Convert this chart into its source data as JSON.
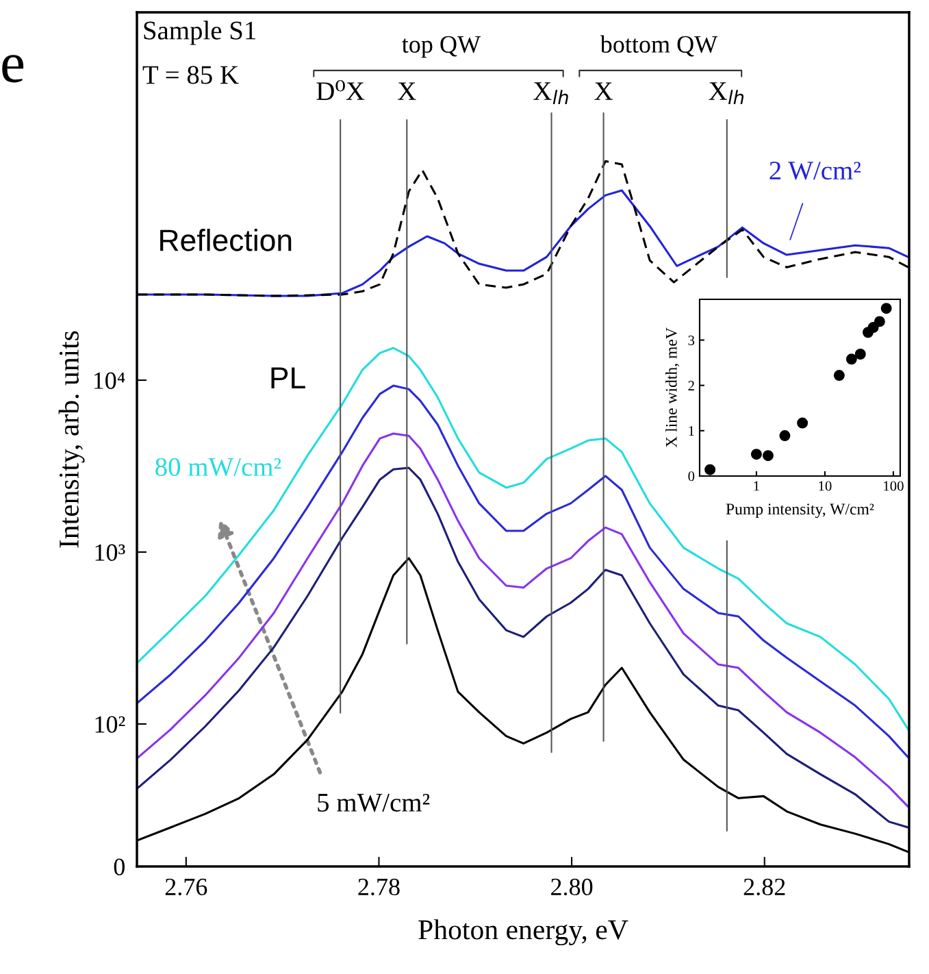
{
  "chart_data": [
    {
      "type": "line",
      "xlabel": "Photon energy, eV",
      "ylabel": "Intensity, arb. units",
      "log": "y",
      "xlim": [
        2.7549,
        2.835
      ],
      "xticks": [
        2.76,
        2.78,
        {
          "value": 2.8,
          "label": "2.80"
        },
        2.82
      ],
      "ylim": [
        0,
        1380000
      ],
      "yticks": [
        0,
        {
          "value": 100,
          "label": "10²"
        },
        {
          "value": 1000,
          "label": "10³"
        },
        {
          "value": 10000,
          "label": "10⁴"
        }
      ],
      "grid": false,
      "legend": false,
      "marker": "none",
      "x": [
        2.7549,
        2.7584,
        2.762,
        2.7655,
        2.7691,
        2.7726,
        2.7762,
        2.7783,
        2.7801,
        2.7815,
        2.7831,
        2.7843,
        2.7861,
        2.7882,
        2.7904,
        2.7932,
        2.795,
        2.7974,
        2.7999,
        2.8017,
        2.8035,
        2.8052,
        2.8081,
        2.8116,
        2.8152,
        2.8173,
        2.8199,
        2.8223,
        2.8258,
        2.8294,
        2.8329,
        2.8349
      ],
      "series": [
        {
          "name": "80 mW/cm²",
          "color": "#22dddd",
          "values": [
            226,
            351,
            556,
            964,
            1750,
            3650,
            7260,
            11500,
            14400,
            15400,
            13800,
            11500,
            7950,
            4580,
            2900,
            2370,
            2530,
            3480,
            4000,
            4460,
            4580,
            3820,
            1920,
            1060,
            802,
            700,
            507,
            385,
            321,
            222,
            140,
            93
          ]
        },
        {
          "color": "#2a2ad8",
          "values": [
            132,
            194,
            306,
            507,
            921,
            1830,
            3820,
            6040,
            8320,
            9290,
            8870,
            7590,
            5510,
            3180,
            1920,
            1330,
            1330,
            1670,
            1920,
            2300,
            2770,
            2300,
            1060,
            610,
            442,
            422,
            306,
            243,
            177,
            128,
            85,
            64
          ]
        },
        {
          "color": "#8833ee",
          "values": [
            63,
            93,
            147,
            243,
            442,
            921,
            1920,
            3180,
            4580,
            4890,
            4750,
            4000,
            2640,
            1520,
            921,
            638,
            621,
            802,
            921,
            1160,
            1390,
            1270,
            668,
            336,
            222,
            212,
            154,
            117,
            89,
            64,
            43,
            33
          ]
        },
        {
          "color": "#1e1e78",
          "values": [
            42,
            62,
            97,
            157,
            279,
            556,
            1210,
            1830,
            2640,
            3030,
            3090,
            2640,
            1670,
            879,
            531,
            351,
            321,
            422,
            507,
            610,
            788,
            732,
            385,
            194,
            128,
            120,
            89,
            67,
            51,
            39,
            27,
            25
          ]
        },
        {
          "name": "5 mW/cm²",
          "color": "#000000",
          "values": [
            21,
            25,
            30,
            37,
            51,
            81,
            154,
            255,
            463,
            732,
            921,
            732,
            351,
            154,
            117,
            85,
            77,
            89,
            107,
            117,
            169,
            212,
            117,
            62,
            43,
            37,
            38,
            31,
            26,
            23,
            20,
            18
          ]
        },
        {
          "name": "2 W/cm²",
          "color": "#2222dd",
          "x": [
            2.7549,
            2.762,
            2.7691,
            2.7726,
            2.7762,
            2.7783,
            2.7801,
            2.7815,
            2.7831,
            2.785,
            2.7868,
            2.7882,
            2.7904,
            2.7932,
            2.795,
            2.7974,
            2.7999,
            2.8017,
            2.8035,
            2.8052,
            2.8081,
            2.8109,
            2.8152,
            2.8177,
            2.8199,
            2.8223,
            2.8258,
            2.8294,
            2.8329,
            2.8349
          ],
          "values": [
            31500,
            31500,
            30900,
            30900,
            32100,
            36100,
            43400,
            52100,
            59800,
            68700,
            62600,
            54600,
            47600,
            43400,
            43400,
            52100,
            78700,
            99100,
            119000,
            127000,
            78700,
            46200,
            59800,
            77300,
            62600,
            53600,
            57100,
            60900,
            58700,
            52100
          ]
        },
        {
          "color": "#000000",
          "line_style": "dashed",
          "x": [
            2.7549,
            2.762,
            2.7691,
            2.7762,
            2.7783,
            2.7801,
            2.7815,
            2.7831,
            2.7845,
            2.7861,
            2.7882,
            2.7904,
            2.7932,
            2.795,
            2.7974,
            2.7999,
            2.8017,
            2.8035,
            2.8052,
            2.8081,
            2.8106,
            2.8152,
            2.8177,
            2.8199,
            2.8223,
            2.8258,
            2.8294,
            2.8329,
            2.8349
          ],
          "values": [
            31500,
            31500,
            30900,
            31500,
            32900,
            36100,
            54600,
            125000,
            167000,
            114000,
            54600,
            36100,
            34500,
            36100,
            41500,
            78700,
            114000,
            188000,
            180000,
            49800,
            37100,
            59800,
            75200,
            52100,
            45400,
            50700,
            55600,
            52100,
            45400
          ]
        }
      ],
      "ref_lines": [
        {
          "axis": "x",
          "value": 2.776,
          "label": "D⁰X",
          "color": "#555555"
        },
        {
          "axis": "x",
          "value": 2.7829,
          "label": "X",
          "color": "#555555"
        },
        {
          "axis": "x",
          "value": 2.7979,
          "label": "X$_{lh}$",
          "color": "#555555"
        },
        {
          "axis": "x",
          "value": 2.8033,
          "label": "X",
          "color": "#555555"
        },
        {
          "axis": "x",
          "value": 2.8161,
          "label": "X$_{lh}$",
          "color": "#555555"
        }
      ],
      "annotations": [
        "Sample S1",
        "T = 85 K",
        "top QW",
        "bottom QW",
        "Reflection",
        "PL",
        "e"
      ]
    },
    {
      "type": "scatter",
      "xlabel": "Pump intensity, W/cm²",
      "ylabel": "X line width, meV",
      "log": "x",
      "xlim": [
        0.148,
        126
      ],
      "xticks": [
        1,
        10,
        100
      ],
      "ylim": [
        0,
        3.9
      ],
      "yticks": [
        0,
        1,
        2,
        3
      ],
      "grid": false,
      "legend": false,
      "marker": "circle",
      "x": [
        0.21,
        1.0,
        1.48,
        2.6,
        4.7,
        16.2,
        24.5,
        33,
        42.7,
        51,
        63,
        79
      ],
      "series": [
        {
          "color": "#000000",
          "values": [
            0.14,
            0.48,
            0.45,
            0.89,
            1.17,
            2.22,
            2.58,
            2.69,
            3.17,
            3.28,
            3.41,
            3.7
          ]
        }
      ]
    }
  ]
}
